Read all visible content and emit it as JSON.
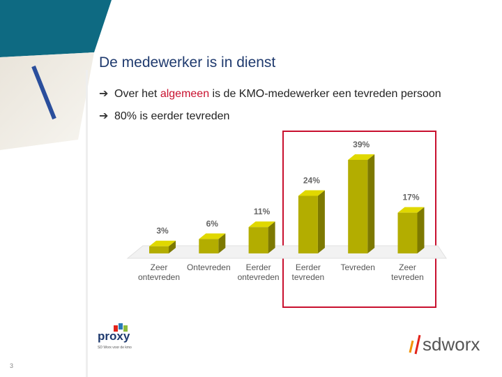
{
  "title": "De medewerker is in dienst",
  "bullets": [
    {
      "parts": [
        "Over het ",
        "algemeen",
        " is de KMO-medewerker een tevreden persoon"
      ]
    },
    {
      "parts": [
        "80% is eerder tevreden"
      ]
    }
  ],
  "chart_data": {
    "type": "bar3d",
    "categories": [
      "Zeer ontevreden",
      "Ontevreden",
      "Eerder ontevreden",
      "Eerder tevreden",
      "Tevreden",
      "Zeer tevreden"
    ],
    "values": [
      3,
      6,
      11,
      24,
      39,
      17
    ],
    "value_labels": [
      "3%",
      "6%",
      "11%",
      "24%",
      "39%",
      "17%"
    ],
    "color": "#b3ad00"
  },
  "footer": {
    "logo_left": "proxy",
    "logo_left_tagline": "SD Worx voor de kmo",
    "logo_right": "sdworx",
    "page_number": "3"
  }
}
